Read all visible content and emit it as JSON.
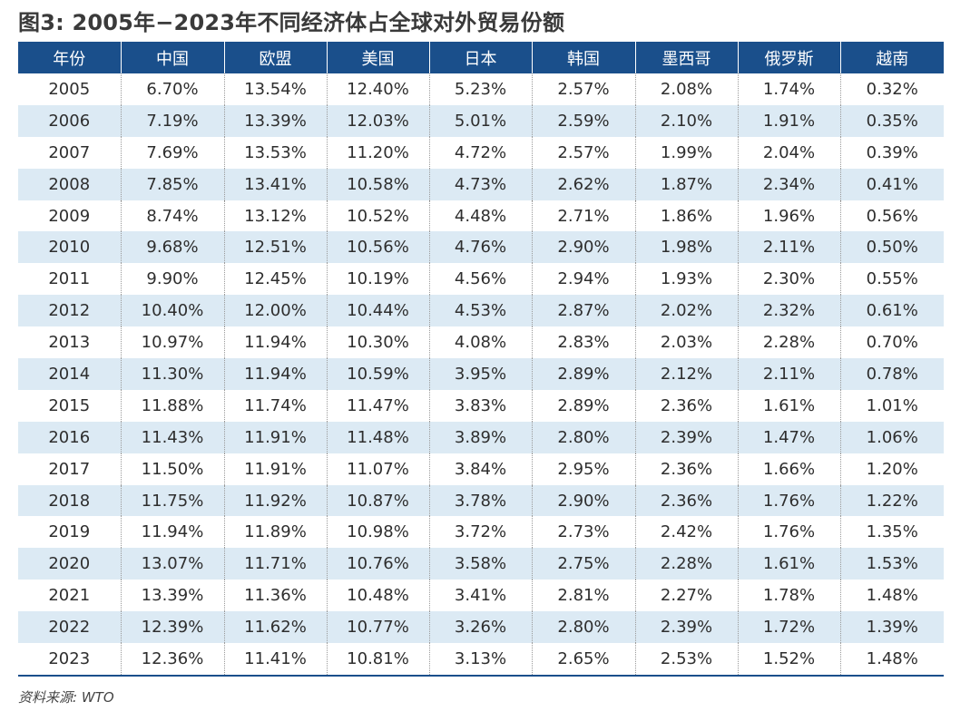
{
  "title": "图3: 2005年−2023年不同经济体占全球对外贸易份额",
  "table": {
    "headers": [
      "年份",
      "中国",
      "欧盟",
      "美国",
      "日本",
      "韩国",
      "墨西哥",
      "俄罗斯",
      "越南"
    ],
    "rows": [
      [
        "2005",
        "6.70%",
        "13.54%",
        "12.40%",
        "5.23%",
        "2.57%",
        "2.08%",
        "1.74%",
        "0.32%"
      ],
      [
        "2006",
        "7.19%",
        "13.39%",
        "12.03%",
        "5.01%",
        "2.59%",
        "2.10%",
        "1.91%",
        "0.35%"
      ],
      [
        "2007",
        "7.69%",
        "13.53%",
        "11.20%",
        "4.72%",
        "2.57%",
        "1.99%",
        "2.04%",
        "0.39%"
      ],
      [
        "2008",
        "7.85%",
        "13.41%",
        "10.58%",
        "4.73%",
        "2.62%",
        "1.87%",
        "2.34%",
        "0.41%"
      ],
      [
        "2009",
        "8.74%",
        "13.12%",
        "10.52%",
        "4.48%",
        "2.71%",
        "1.86%",
        "1.96%",
        "0.56%"
      ],
      [
        "2010",
        "9.68%",
        "12.51%",
        "10.56%",
        "4.76%",
        "2.90%",
        "1.98%",
        "2.11%",
        "0.50%"
      ],
      [
        "2011",
        "9.90%",
        "12.45%",
        "10.19%",
        "4.56%",
        "2.94%",
        "1.93%",
        "2.30%",
        "0.55%"
      ],
      [
        "2012",
        "10.40%",
        "12.00%",
        "10.44%",
        "4.53%",
        "2.87%",
        "2.02%",
        "2.32%",
        "0.61%"
      ],
      [
        "2013",
        "10.97%",
        "11.94%",
        "10.30%",
        "4.08%",
        "2.83%",
        "2.03%",
        "2.28%",
        "0.70%"
      ],
      [
        "2014",
        "11.30%",
        "11.94%",
        "10.59%",
        "3.95%",
        "2.89%",
        "2.12%",
        "2.11%",
        "0.78%"
      ],
      [
        "2015",
        "11.88%",
        "11.74%",
        "11.47%",
        "3.83%",
        "2.89%",
        "2.36%",
        "1.61%",
        "1.01%"
      ],
      [
        "2016",
        "11.43%",
        "11.91%",
        "11.48%",
        "3.89%",
        "2.80%",
        "2.39%",
        "1.47%",
        "1.06%"
      ],
      [
        "2017",
        "11.50%",
        "11.91%",
        "11.07%",
        "3.84%",
        "2.95%",
        "2.36%",
        "1.66%",
        "1.20%"
      ],
      [
        "2018",
        "11.75%",
        "11.92%",
        "10.87%",
        "3.78%",
        "2.90%",
        "2.36%",
        "1.76%",
        "1.22%"
      ],
      [
        "2019",
        "11.94%",
        "11.89%",
        "10.98%",
        "3.72%",
        "2.73%",
        "2.42%",
        "1.76%",
        "1.35%"
      ],
      [
        "2020",
        "13.07%",
        "11.71%",
        "10.76%",
        "3.58%",
        "2.75%",
        "2.28%",
        "1.61%",
        "1.53%"
      ],
      [
        "2021",
        "13.39%",
        "11.36%",
        "10.48%",
        "3.41%",
        "2.81%",
        "2.27%",
        "1.78%",
        "1.48%"
      ],
      [
        "2022",
        "12.39%",
        "11.62%",
        "10.77%",
        "3.26%",
        "2.80%",
        "2.39%",
        "1.72%",
        "1.39%"
      ],
      [
        "2023",
        "12.36%",
        "11.41%",
        "10.81%",
        "3.13%",
        "2.65%",
        "2.53%",
        "1.52%",
        "1.48%"
      ]
    ]
  },
  "source": "资料来源: WTO",
  "colors": {
    "header_bg": "#1a4f8b",
    "header_text": "#ffffff",
    "stripe_bg": "#dceaf4",
    "title_text": "#3a3a3a"
  }
}
